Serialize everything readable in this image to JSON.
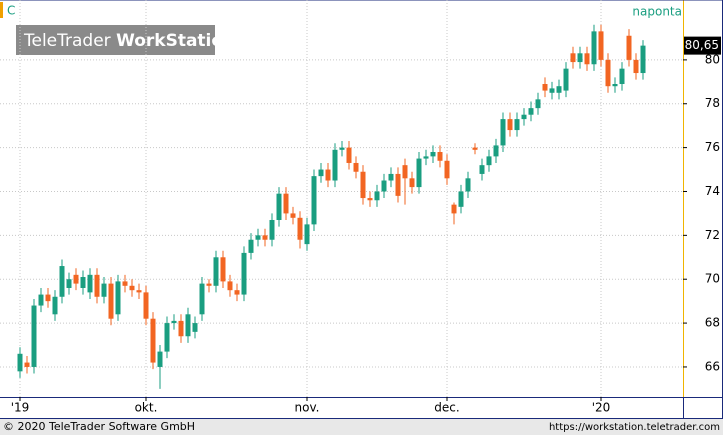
{
  "chart_data": {
    "type": "candlestick",
    "symbol": "C",
    "period": "naponta",
    "watermark": {
      "brand": "TeleTrader",
      "product": "WorkStation"
    },
    "last_label": "80,65",
    "footer_left": "© 2020 TeleTrader Software GmbH",
    "footer_right": "https://workstation.teletrader.com",
    "up_color": "#1a9e80",
    "down_color": "#f26522",
    "grid": true,
    "categories": [
      "'19",
      null,
      null,
      null,
      null,
      null,
      null,
      null,
      null,
      null,
      null,
      null,
      null,
      null,
      null,
      null,
      null,
      null,
      "okt.",
      null,
      null,
      null,
      null,
      null,
      null,
      null,
      null,
      null,
      null,
      null,
      null,
      null,
      null,
      null,
      null,
      null,
      null,
      null,
      null,
      null,
      null,
      "nov.",
      null,
      null,
      null,
      null,
      null,
      null,
      null,
      null,
      null,
      null,
      null,
      null,
      null,
      null,
      null,
      null,
      null,
      null,
      null,
      "dec.",
      null,
      null,
      null,
      null,
      null,
      null,
      null,
      null,
      null,
      null,
      null,
      null,
      null,
      null,
      null,
      null,
      null,
      null,
      null,
      null,
      null,
      "'20",
      null,
      null,
      null,
      null,
      null,
      null
    ],
    "open": [
      65.8,
      66.2,
      66.0,
      68.8,
      69.3,
      68.4,
      69.2,
      69.6,
      70.2,
      69.6,
      69.4,
      70.2,
      69.2,
      69.8,
      68.4,
      69.9,
      69.7,
      69.5,
      69.4,
      68.2,
      66.0,
      66.7,
      68.0,
      68.1,
      67.4,
      67.6,
      68.4,
      69.8,
      69.7,
      71.0,
      69.9,
      69.5,
      69.3,
      71.2,
      71.8,
      72.0,
      71.8,
      72.7,
      73.9,
      73.0,
      72.8,
      71.6,
      72.5,
      74.7,
      75.0,
      74.5,
      75.9,
      76.0,
      75.3,
      74.9,
      73.7,
      73.6,
      74.0,
      74.5,
      74.8,
      75.2,
      74.6,
      74.2,
      75.5,
      75.6,
      75.8,
      75.4,
      73.4,
      73.3,
      74.0,
      76.0,
      74.8,
      75.2,
      75.6,
      76.1,
      77.3,
      76.8,
      77.3,
      77.5,
      77.8,
      78.9,
      78.5,
      78.5,
      78.6,
      80.3,
      79.9,
      80.3,
      79.8,
      81.3,
      80.0,
      78.8,
      78.9,
      81.1,
      80.0,
      79.4
    ],
    "high": [
      66.9,
      66.5,
      69.1,
      69.6,
      69.6,
      69.5,
      70.9,
      70.3,
      70.5,
      70.4,
      70.5,
      70.5,
      70.1,
      70.1,
      70.2,
      70.2,
      70.0,
      69.8,
      69.7,
      68.5,
      67.0,
      68.3,
      68.4,
      68.4,
      68.7,
      68.3,
      70.1,
      70.0,
      71.3,
      71.3,
      70.2,
      69.8,
      71.5,
      72.1,
      72.3,
      72.3,
      73.0,
      74.2,
      74.2,
      73.3,
      73.1,
      72.8,
      75.0,
      75.3,
      75.3,
      76.2,
      76.3,
      76.3,
      75.6,
      75.2,
      74.0,
      74.3,
      74.8,
      75.1,
      75.1,
      75.5,
      74.9,
      75.8,
      75.9,
      76.1,
      76.1,
      75.7,
      73.5,
      74.3,
      74.9,
      76.2,
      75.5,
      75.9,
      76.4,
      77.6,
      77.6,
      77.6,
      77.8,
      78.1,
      78.5,
      79.2,
      79.0,
      79.1,
      79.9,
      80.6,
      80.6,
      80.6,
      81.6,
      81.6,
      80.3,
      79.2,
      79.9,
      81.4,
      80.3,
      80.9
    ],
    "low": [
      65.5,
      65.7,
      65.7,
      68.5,
      68.7,
      68.1,
      68.9,
      69.3,
      69.5,
      69.3,
      69.1,
      68.9,
      68.9,
      67.9,
      68.1,
      69.4,
      69.2,
      69.1,
      67.9,
      65.9,
      65.0,
      66.4,
      67.7,
      67.1,
      67.1,
      67.3,
      68.1,
      69.4,
      69.4,
      69.6,
      69.2,
      69.0,
      69.0,
      70.9,
      71.5,
      71.5,
      71.5,
      72.4,
      72.7,
      72.5,
      71.4,
      71.3,
      72.2,
      74.4,
      74.2,
      74.2,
      75.6,
      75.0,
      74.6,
      73.4,
      73.3,
      73.3,
      73.7,
      74.2,
      73.5,
      73.4,
      73.9,
      73.9,
      75.2,
      75.3,
      75.1,
      74.3,
      72.5,
      73.0,
      73.7,
      75.7,
      74.5,
      74.9,
      75.3,
      75.8,
      76.5,
      76.5,
      77.0,
      77.2,
      77.5,
      78.3,
      78.2,
      78.2,
      78.3,
      79.6,
      79.6,
      79.5,
      79.5,
      79.7,
      78.5,
      78.5,
      78.6,
      79.7,
      79.1,
      79.1
    ],
    "close": [
      66.6,
      66.0,
      68.8,
      69.3,
      69.0,
      69.2,
      70.6,
      70.0,
      69.8,
      70.1,
      70.2,
      69.2,
      69.8,
      68.2,
      69.9,
      69.7,
      69.5,
      69.4,
      68.2,
      66.2,
      66.7,
      68.0,
      68.1,
      67.4,
      68.4,
      68.0,
      69.8,
      69.7,
      71.0,
      69.9,
      69.5,
      69.3,
      71.2,
      71.8,
      72.0,
      71.8,
      72.7,
      73.9,
      73.0,
      72.8,
      71.8,
      72.5,
      74.7,
      75.0,
      74.5,
      75.9,
      76.0,
      75.3,
      74.9,
      73.7,
      73.6,
      74.0,
      74.5,
      74.8,
      73.8,
      74.6,
      74.2,
      75.5,
      75.6,
      75.8,
      75.4,
      74.6,
      73.0,
      74.0,
      74.6,
      75.9,
      75.2,
      75.6,
      76.1,
      77.3,
      76.8,
      77.3,
      77.5,
      77.8,
      78.2,
      78.6,
      78.7,
      78.8,
      79.6,
      79.9,
      80.3,
      79.8,
      81.3,
      80.0,
      78.8,
      78.9,
      79.6,
      80.0,
      79.4,
      80.65
    ],
    "ylim": [
      64.63,
      82.73
    ],
    "yticks": [
      66,
      68,
      70,
      72,
      74,
      76,
      78,
      80
    ]
  }
}
